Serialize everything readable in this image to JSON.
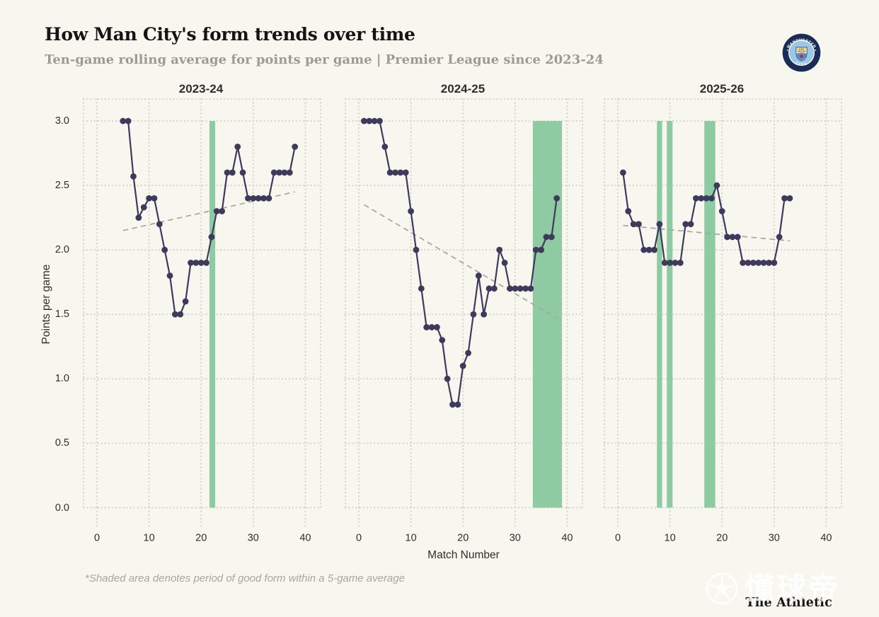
{
  "page": {
    "background": "#f7f6ef"
  },
  "header": {
    "title": "How Man City's form trends over time",
    "subtitle": "Ten-game rolling average for points per game | Premier League since 2023-24",
    "badge": {
      "top_text": "MANCHESTER",
      "bottom_text": "CITY"
    }
  },
  "footer": {
    "footnote": "*Shaded area denotes period of good form within a 5-game average",
    "brand": "The Athletic",
    "watermark": "懂球帝"
  },
  "chart_data": {
    "type": "line",
    "title": "How Man City's form trends over time",
    "subtitle": "Ten-game rolling average for points per game | Premier League since 2023-24",
    "xlabel": "Match Number",
    "ylabel": "Points per game",
    "x_ticks": [
      0,
      10,
      20,
      30,
      40
    ],
    "y_ticks": [
      "3.0",
      "2.5",
      "2.0",
      "1.5",
      "1.0",
      "0.5",
      "0.0"
    ],
    "xlim": [
      -3,
      44
    ],
    "ylim": [
      0.0,
      3.0
    ],
    "grid": "dotted",
    "legend_note": "Shaded green bands mark periods of good form (5-game average); dashed gray line is the season trend",
    "colors": {
      "line": "#3d3a5c",
      "band": "#8ecba3",
      "trend": "#a6a69e",
      "grid": "#d2d6c8",
      "background": "#f7f6ef"
    },
    "panels": [
      {
        "title": "2023-24",
        "x": [
          5,
          6,
          7,
          8,
          9,
          10,
          11,
          12,
          13,
          14,
          15,
          16,
          17,
          18,
          19,
          20,
          21,
          22,
          23,
          24,
          25,
          26,
          27,
          28,
          29,
          30,
          31,
          32,
          33,
          34,
          35,
          36,
          37,
          38
        ],
        "y": [
          3.0,
          3.0,
          2.57,
          2.25,
          2.33,
          2.4,
          2.4,
          2.2,
          2.0,
          1.8,
          1.5,
          1.5,
          1.6,
          1.9,
          1.9,
          1.9,
          1.9,
          2.1,
          2.3,
          2.3,
          2.6,
          2.6,
          2.8,
          2.6,
          2.4,
          2.4,
          2.4,
          2.4,
          2.4,
          2.6,
          2.6,
          2.6,
          2.6,
          2.8
        ],
        "trend": {
          "x1": 5,
          "y1": 2.15,
          "x2": 38,
          "y2": 2.45
        },
        "bands": [
          [
            21.6,
            22.7
          ]
        ]
      },
      {
        "title": "2024-25",
        "x": [
          1,
          2,
          3,
          4,
          5,
          6,
          7,
          8,
          9,
          10,
          11,
          12,
          13,
          14,
          15,
          16,
          17,
          18,
          19,
          20,
          21,
          22,
          23,
          24,
          25,
          26,
          27,
          28,
          29,
          30,
          31,
          32,
          33,
          34,
          35,
          36,
          37,
          38
        ],
        "y": [
          3.0,
          3.0,
          3.0,
          3.0,
          2.8,
          2.6,
          2.6,
          2.6,
          2.6,
          2.3,
          2.0,
          1.7,
          1.4,
          1.4,
          1.4,
          1.3,
          1.0,
          0.8,
          0.8,
          1.1,
          1.2,
          1.5,
          1.8,
          1.5,
          1.7,
          1.7,
          2.0,
          1.9,
          1.7,
          1.7,
          1.7,
          1.7,
          1.7,
          2.0,
          2.0,
          2.1,
          2.1,
          2.4
        ],
        "trend": {
          "x1": 1,
          "y1": 2.35,
          "x2": 38,
          "y2": 1.47
        },
        "bands": [
          [
            33.4,
            39.0
          ]
        ]
      },
      {
        "title": "2025-26",
        "x": [
          1,
          2,
          3,
          4,
          5,
          6,
          7,
          8,
          9,
          10,
          11,
          12,
          13,
          14,
          15,
          16,
          17,
          18,
          19,
          20,
          21,
          22,
          23,
          24,
          25,
          26,
          27,
          28,
          29,
          30,
          31,
          32,
          33
        ],
        "y": [
          2.6,
          2.3,
          2.2,
          2.2,
          2.0,
          2.0,
          2.0,
          2.2,
          1.9,
          1.9,
          1.9,
          1.9,
          2.2,
          2.2,
          2.4,
          2.4,
          2.4,
          2.4,
          2.5,
          2.3,
          2.1,
          2.1,
          2.1,
          1.9,
          1.9,
          1.9,
          1.9,
          1.9,
          1.9,
          1.9,
          2.1,
          2.4,
          2.4
        ],
        "trend": {
          "x1": 1,
          "y1": 2.19,
          "x2": 33,
          "y2": 2.07
        },
        "bands": [
          [
            7.5,
            8.5
          ],
          [
            9.4,
            10.5
          ],
          [
            16.6,
            18.7
          ]
        ]
      }
    ]
  }
}
